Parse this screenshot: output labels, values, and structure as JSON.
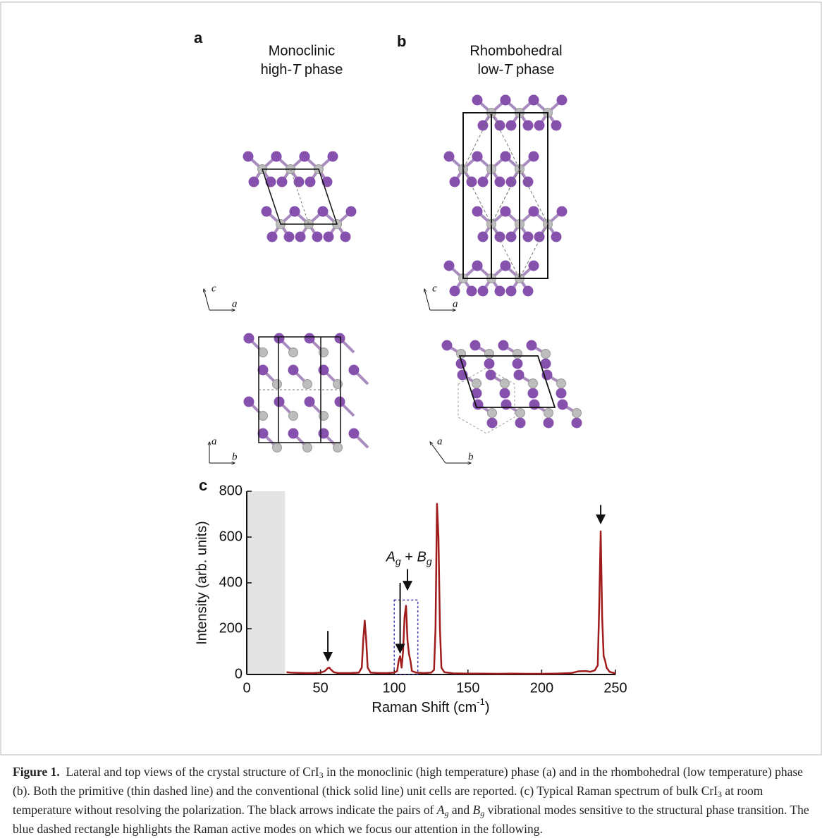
{
  "panels": [
    {
      "label": "a",
      "title_line1": "Monoclinic",
      "title_line2": [
        "high-",
        "T",
        " phase"
      ],
      "side_axes": [
        "c",
        "a"
      ],
      "top_axes": [
        "a",
        "b"
      ]
    },
    {
      "label": "b",
      "title_line1": "Rhombohedral",
      "title_line2": [
        "low-",
        "T",
        " phase"
      ],
      "side_axes": [
        "c",
        "a"
      ],
      "top_axes": [
        "a",
        "b"
      ]
    }
  ],
  "chart_data": {
    "type": "line",
    "panel_label": "c",
    "x_label": [
      "Raman Shift (cm",
      "-1",
      ")"
    ],
    "y_label": "Intensity (arb. units)",
    "x": [
      27,
      30,
      35,
      40,
      45,
      50,
      53,
      55,
      56,
      57,
      59,
      62,
      70,
      76,
      78,
      79,
      80,
      81,
      82,
      84,
      90,
      95,
      100,
      102,
      103,
      104,
      105,
      106,
      107,
      108,
      109,
      110,
      111,
      112,
      115,
      120,
      125,
      127,
      128,
      129,
      130,
      131,
      132,
      134,
      140,
      150,
      160,
      170,
      180,
      190,
      200,
      210,
      220,
      225,
      230,
      233,
      236,
      238,
      239,
      240,
      241,
      242,
      243,
      244,
      246,
      248,
      250
    ],
    "series": [
      {
        "color": "#a01c1c",
        "values": [
          10,
          8,
          7,
          6,
          6,
          8,
          15,
          28,
          30,
          22,
          10,
          6,
          6,
          8,
          30,
          150,
          235,
          150,
          30,
          8,
          6,
          6,
          8,
          15,
          60,
          80,
          30,
          100,
          250,
          300,
          150,
          90,
          60,
          15,
          8,
          6,
          8,
          20,
          200,
          745,
          600,
          200,
          30,
          10,
          5,
          4,
          4,
          3,
          4,
          3,
          3,
          4,
          6,
          14,
          15,
          12,
          18,
          40,
          300,
          625,
          250,
          80,
          60,
          30,
          12,
          8,
          5
        ]
      }
    ],
    "xlim": [
      0,
      250
    ],
    "ylim": [
      0,
      800
    ],
    "xticks": [
      0,
      50,
      100,
      150,
      200,
      250
    ],
    "yticks": [
      0,
      200,
      400,
      600,
      800
    ],
    "shaded_region": {
      "x": [
        0,
        26
      ],
      "color": "#e4e4e4"
    },
    "highlight_box": {
      "x": [
        100,
        116
      ],
      "y": [
        0,
        325
      ],
      "color": "#3a3aa0"
    },
    "arrows": [
      {
        "x": 55,
        "y": [
          60,
          190
        ]
      },
      {
        "x": 104,
        "y": [
          95,
          400
        ]
      },
      {
        "x": 109,
        "y": [
          370,
          460
        ]
      },
      {
        "x": 240,
        "y": [
          660,
          740
        ]
      }
    ],
    "annotation": {
      "parts": [
        "A",
        "g",
        " + ",
        "B",
        "g"
      ],
      "x": 110,
      "y": 510
    }
  },
  "caption": {
    "segments": [
      {
        "text": "Figure 1.",
        "style": "bold"
      },
      {
        "text": "  Lateral and top views of the crystal structure of CrI",
        "style": "plain"
      },
      {
        "text": "3",
        "style": "sub"
      },
      {
        "text": " in the monoclinic (high temperature) phase (a) and in the rhombohedral (low temperature) phase (b). Both the primitive (thin dashed line) and the conventional (thick solid line) unit cells are reported. (c) Typical Raman spectrum of bulk CrI",
        "style": "plain"
      },
      {
        "text": "3",
        "style": "sub"
      },
      {
        "text": " at room temperature without resolving the polarization. The black arrows indicate the pairs of ",
        "style": "plain"
      },
      {
        "text": "A",
        "style": "italic"
      },
      {
        "text": "g",
        "style": "italic-sub"
      },
      {
        "text": " and ",
        "style": "plain"
      },
      {
        "text": "B",
        "style": "italic"
      },
      {
        "text": "g",
        "style": "italic-sub"
      },
      {
        "text": " vibrational modes sensitive to the structural phase transition. The blue dashed rectangle highlights the Raman active modes on which we focus our attention in the following.",
        "style": "plain"
      }
    ]
  }
}
